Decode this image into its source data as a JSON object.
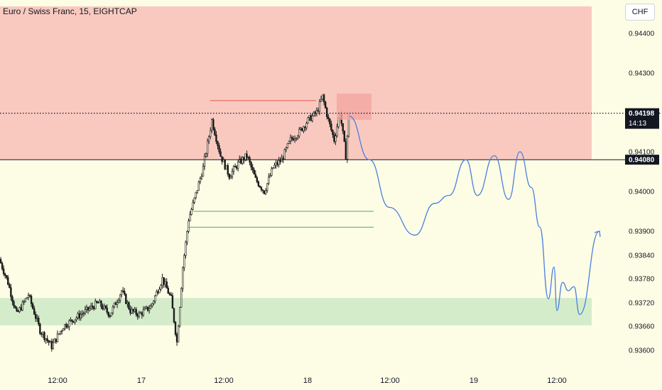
{
  "header": {
    "symbol_title": "Euro / Swiss Franc, 15, EIGHTCAP",
    "currency_button": "CHF"
  },
  "chart_data": {
    "type": "candlestick",
    "title": "Euro / Swiss Franc, 15, EIGHTCAP",
    "y_axis": {
      "ticks": [
        "0.94400",
        "0.94300",
        "0.94100",
        "0.94000",
        "0.93900",
        "0.93840",
        "0.93780",
        "0.93720",
        "0.93660",
        "0.93600"
      ]
    },
    "x_axis": {
      "ticks": [
        "12:00",
        "17",
        "12:00",
        "18",
        "12:00",
        "19",
        "12:00"
      ]
    },
    "current_price": {
      "price": 0.94198,
      "label": "0.94198",
      "countdown": "14:13"
    },
    "horizontal_line": {
      "price": 0.9408,
      "label": "0.94080"
    },
    "zones": [
      {
        "name": "supply-zone",
        "price_high": 0.9451,
        "price_low": 0.9408,
        "color": "#f9c9c0"
      },
      {
        "name": "demand-zone",
        "price_high": 0.93732,
        "price_low": 0.93662,
        "color": "#d4ecca"
      }
    ],
    "level_lines": [
      {
        "name": "resistance-line",
        "price": 0.9423,
        "color": "#e05a4a"
      },
      {
        "name": "support-line-upper",
        "price": 0.9395,
        "color": "#4caf50"
      },
      {
        "name": "support-line-lower",
        "price": 0.9391,
        "color": "#4caf50"
      }
    ],
    "projection_path": {
      "color": "#4a7fe0",
      "points": [
        [
          0.9419,
          0
        ],
        [
          0.9408,
          7
        ],
        [
          0.9396,
          14
        ],
        [
          0.9389,
          23
        ],
        [
          0.9397,
          30
        ],
        [
          0.9399,
          35
        ],
        [
          0.9408,
          41
        ],
        [
          0.9399,
          45
        ],
        [
          0.9409,
          51
        ],
        [
          0.9398,
          56
        ],
        [
          0.941,
          60
        ],
        [
          0.9401,
          64
        ],
        [
          0.9391,
          67
        ],
        [
          0.9373,
          70
        ],
        [
          0.9381,
          72
        ],
        [
          0.937,
          73
        ],
        [
          0.93771,
          75
        ],
        [
          0.9375,
          77
        ],
        [
          0.9376,
          79
        ],
        [
          0.9369,
          81
        ],
        [
          0.939,
          88
        ]
      ]
    },
    "candles": {
      "count": 240,
      "open_first": 0.9383,
      "close_last": 0.9419,
      "high": 0.94255,
      "low": 0.93583
    }
  }
}
